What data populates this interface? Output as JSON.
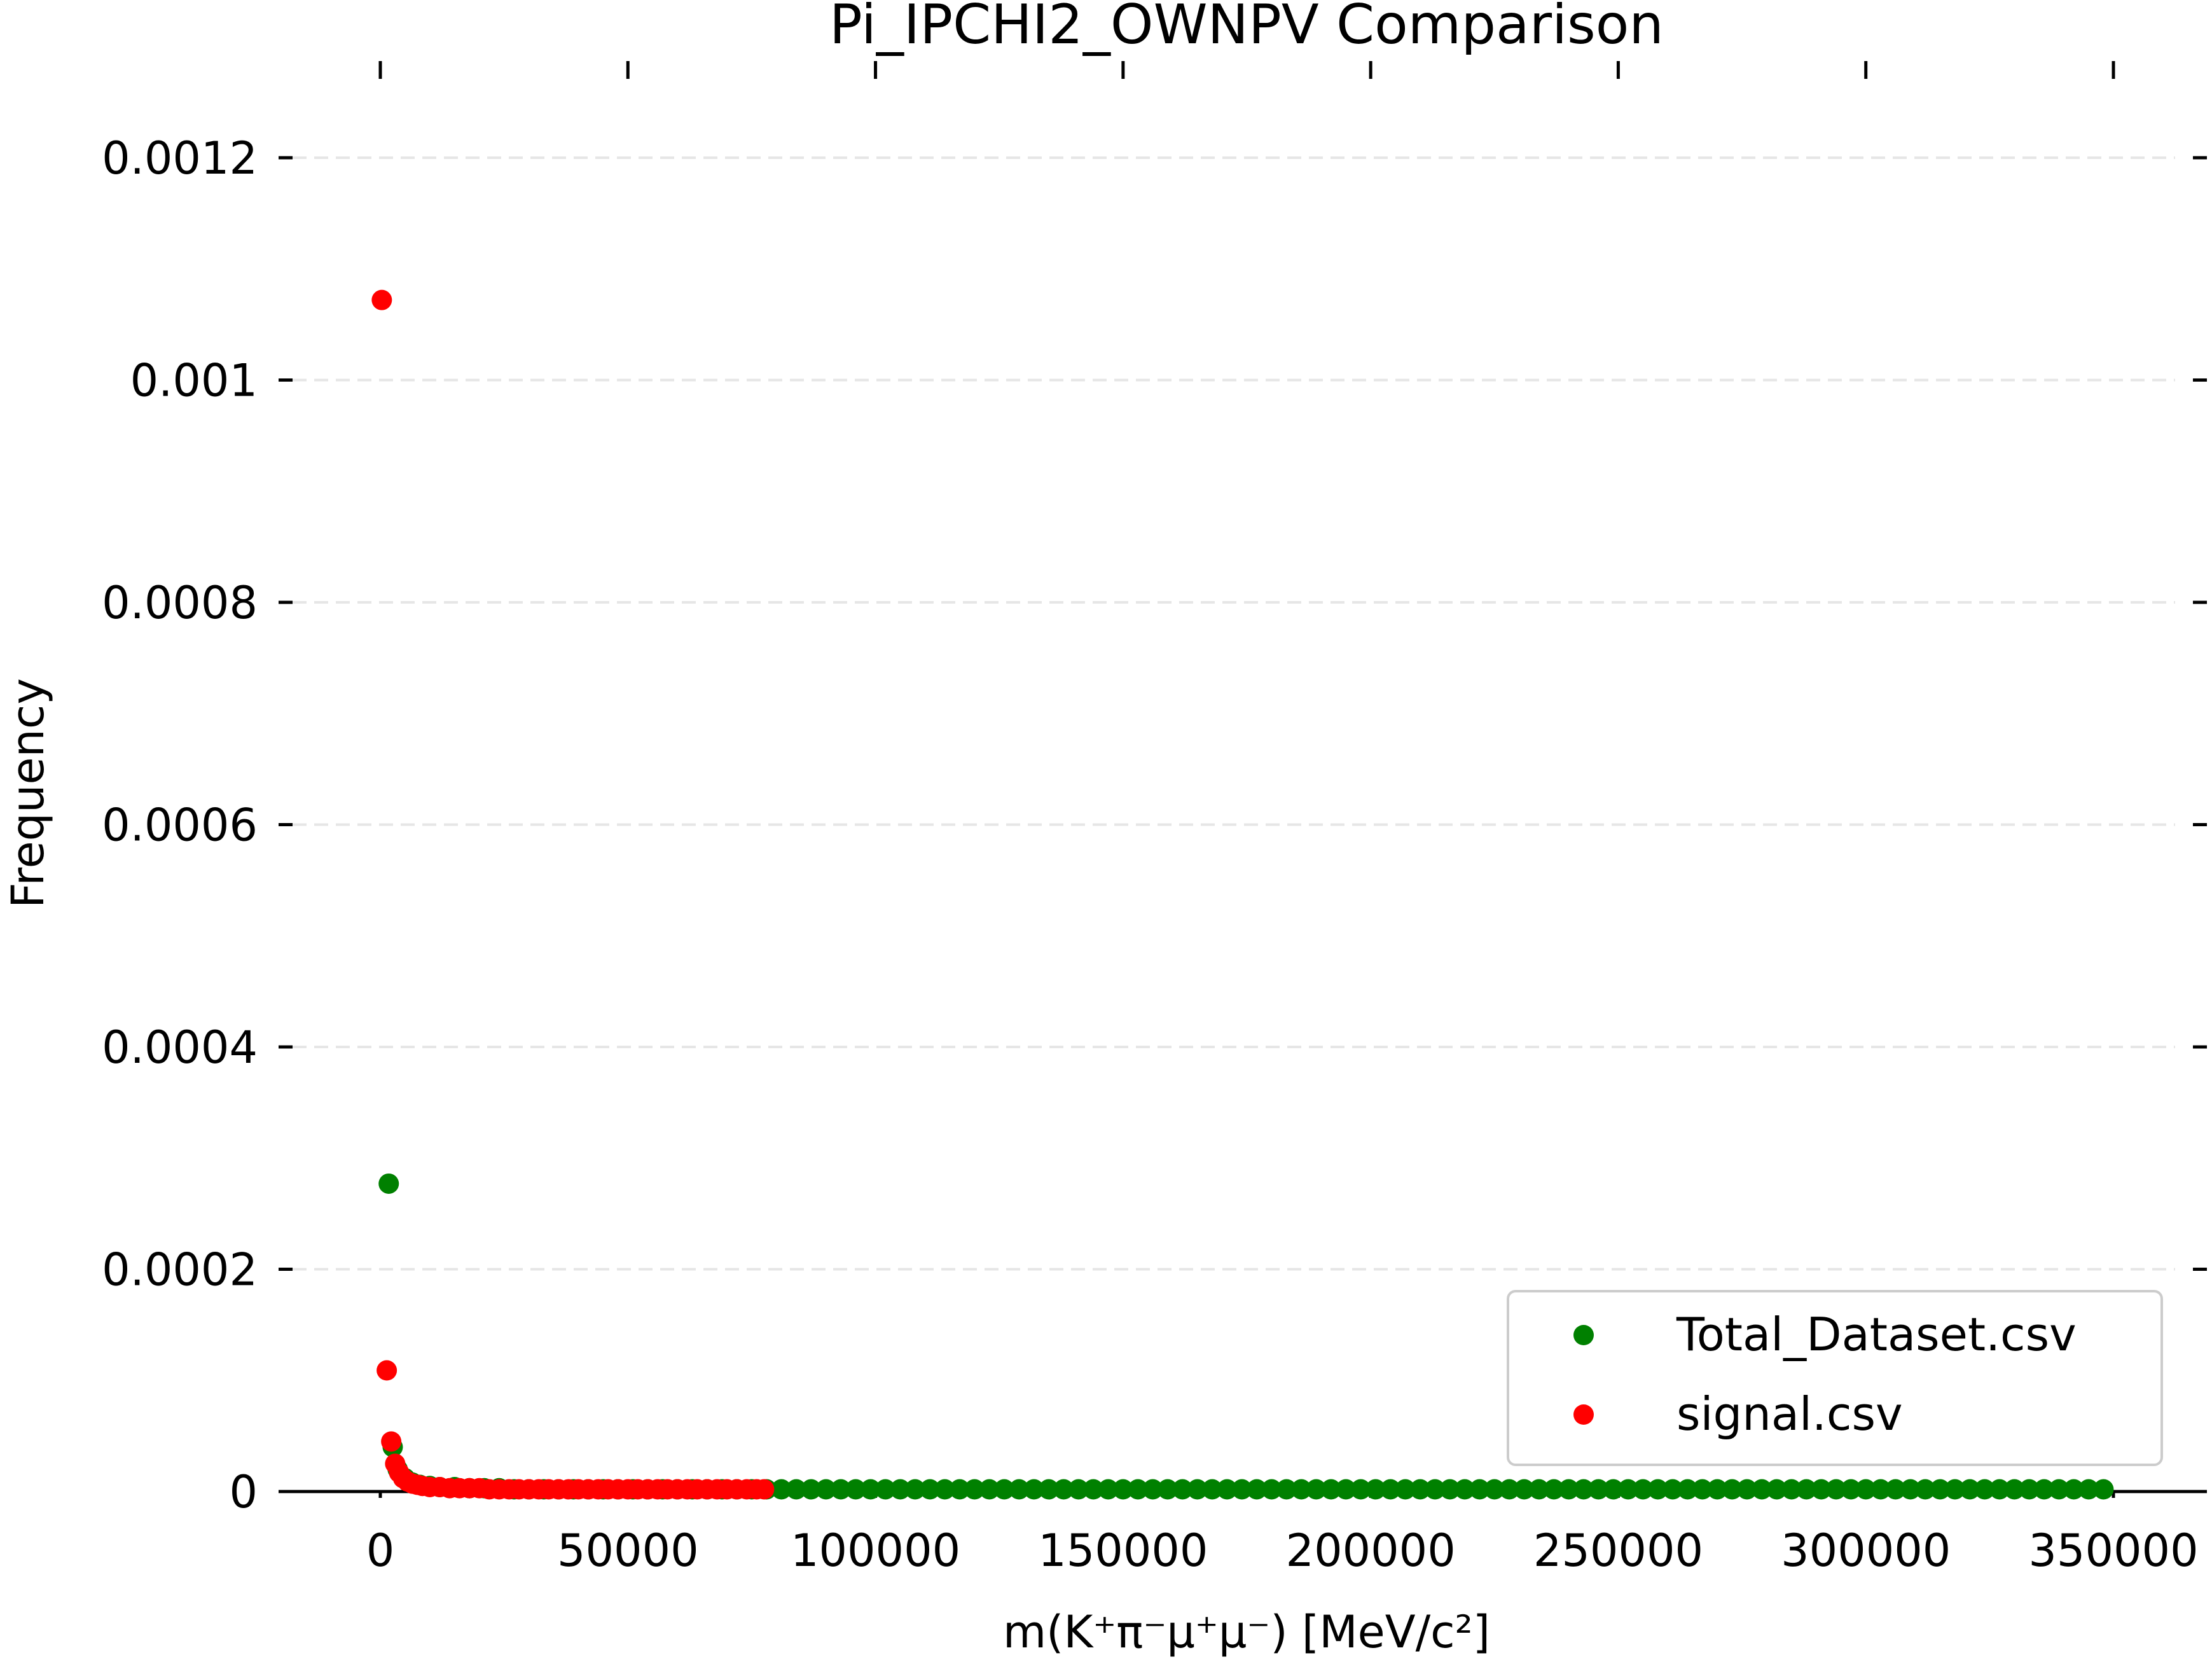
{
  "chart_data": {
    "type": "scatter",
    "title": "Pi_IPCHI2_OWNPV Comparison",
    "xlabel": "m(K⁺π⁻μ⁺μ⁻) [MeV/c²]",
    "ylabel": "Frequency",
    "xlim": [
      -20000,
      370000
    ],
    "ylim": [
      0,
      0.0012
    ],
    "xticks": [
      0,
      50000,
      100000,
      150000,
      200000,
      250000,
      300000,
      350000
    ],
    "xtick_labels": [
      "0",
      "50000",
      "100000",
      "150000",
      "200000",
      "250000",
      "300000",
      "350000"
    ],
    "yticks": [
      0,
      0.0002,
      0.0004,
      0.0006,
      0.0008,
      0.001,
      0.0012
    ],
    "ytick_labels": [
      "0",
      "0.0002",
      "0.0004",
      "0.0006",
      "0.0008",
      "0.001",
      "0.0012"
    ],
    "grid": "horizontal dashed",
    "legend_position": "lower-right",
    "series": [
      {
        "name": "Total_Dataset.csv",
        "color": "#008000",
        "points": [
          [
            1700,
            0.000277
          ],
          [
            2500,
            4e-05
          ],
          [
            3500,
            2e-05
          ],
          [
            5000,
            1.2e-05
          ],
          [
            6500,
            8e-06
          ],
          [
            8000,
            6e-06
          ],
          [
            10000,
            5e-06
          ],
          [
            12000,
            4e-06
          ],
          [
            15000,
            4e-06
          ],
          [
            18000,
            3e-06
          ],
          [
            21000,
            3e-06
          ],
          [
            24000,
            3e-06
          ],
          [
            27000,
            2e-06
          ],
          [
            30000,
            2e-06
          ],
          [
            33000,
            2e-06
          ],
          [
            36000,
            2e-06
          ],
          [
            39000,
            2e-06
          ],
          [
            42000,
            2e-06
          ],
          [
            45000,
            2e-06
          ],
          [
            48000,
            2e-06
          ],
          [
            51000,
            2e-06
          ],
          [
            54000,
            2e-06
          ],
          [
            57000,
            2e-06
          ],
          [
            60000,
            2e-06
          ],
          [
            63000,
            2e-06
          ],
          [
            66000,
            2e-06
          ],
          [
            69000,
            2e-06
          ],
          [
            72000,
            2e-06
          ],
          [
            75000,
            2e-06
          ],
          [
            78000,
            2e-06
          ],
          [
            81000,
            2e-06
          ],
          [
            84000,
            2e-06
          ],
          [
            87000,
            2e-06
          ],
          [
            90000,
            2e-06
          ],
          [
            93000,
            2e-06
          ],
          [
            96000,
            2e-06
          ],
          [
            99000,
            2e-06
          ],
          [
            102000,
            2e-06
          ],
          [
            105000,
            2e-06
          ],
          [
            108000,
            2e-06
          ],
          [
            111000,
            2e-06
          ],
          [
            114000,
            2e-06
          ],
          [
            117000,
            2e-06
          ],
          [
            120000,
            2e-06
          ],
          [
            123000,
            2e-06
          ],
          [
            126000,
            2e-06
          ],
          [
            129000,
            2e-06
          ],
          [
            132000,
            2e-06
          ],
          [
            135000,
            2e-06
          ],
          [
            138000,
            2e-06
          ],
          [
            141000,
            2e-06
          ],
          [
            144000,
            2e-06
          ],
          [
            147000,
            2e-06
          ],
          [
            150000,
            2e-06
          ],
          [
            153000,
            2e-06
          ],
          [
            156000,
            2e-06
          ],
          [
            159000,
            2e-06
          ],
          [
            162000,
            2e-06
          ],
          [
            165000,
            2e-06
          ],
          [
            168000,
            2e-06
          ],
          [
            171000,
            2e-06
          ],
          [
            174000,
            2e-06
          ],
          [
            177000,
            2e-06
          ],
          [
            180000,
            2e-06
          ],
          [
            183000,
            2e-06
          ],
          [
            186000,
            2e-06
          ],
          [
            189000,
            2e-06
          ],
          [
            192000,
            2e-06
          ],
          [
            195000,
            2e-06
          ],
          [
            198000,
            2e-06
          ],
          [
            201000,
            2e-06
          ],
          [
            204000,
            2e-06
          ],
          [
            207000,
            2e-06
          ],
          [
            210000,
            2e-06
          ],
          [
            213000,
            2e-06
          ],
          [
            216000,
            2e-06
          ],
          [
            219000,
            2e-06
          ],
          [
            222000,
            2e-06
          ],
          [
            225000,
            2e-06
          ],
          [
            228000,
            2e-06
          ],
          [
            231000,
            2e-06
          ],
          [
            234000,
            2e-06
          ],
          [
            237000,
            2e-06
          ],
          [
            240000,
            2e-06
          ],
          [
            243000,
            2e-06
          ],
          [
            246000,
            2e-06
          ],
          [
            249000,
            2e-06
          ],
          [
            252000,
            2e-06
          ],
          [
            255000,
            2e-06
          ],
          [
            258000,
            2e-06
          ],
          [
            261000,
            2e-06
          ],
          [
            264000,
            2e-06
          ],
          [
            267000,
            2e-06
          ],
          [
            270000,
            2e-06
          ],
          [
            273000,
            2e-06
          ],
          [
            276000,
            2e-06
          ],
          [
            279000,
            2e-06
          ],
          [
            282000,
            2e-06
          ],
          [
            285000,
            2e-06
          ],
          [
            288000,
            2e-06
          ],
          [
            291000,
            2e-06
          ],
          [
            294000,
            2e-06
          ],
          [
            297000,
            2e-06
          ],
          [
            300000,
            2e-06
          ],
          [
            303000,
            2e-06
          ],
          [
            306000,
            2e-06
          ],
          [
            309000,
            2e-06
          ],
          [
            312000,
            2e-06
          ],
          [
            315000,
            2e-06
          ],
          [
            318000,
            2e-06
          ],
          [
            321000,
            2e-06
          ],
          [
            324000,
            2e-06
          ],
          [
            327000,
            2e-06
          ],
          [
            330000,
            2e-06
          ],
          [
            333000,
            2e-06
          ],
          [
            336000,
            2e-06
          ],
          [
            339000,
            2e-06
          ],
          [
            342000,
            2e-06
          ],
          [
            345000,
            2e-06
          ],
          [
            348000,
            2e-06
          ]
        ]
      },
      {
        "name": "signal.csv",
        "color": "#ff0000",
        "points": [
          [
            300,
            0.001072
          ],
          [
            1300,
            0.000109
          ],
          [
            2200,
            4.5e-05
          ],
          [
            3000,
            2.5e-05
          ],
          [
            3800,
            1.7e-05
          ],
          [
            4600,
            1.2e-05
          ],
          [
            5500,
            9e-06
          ],
          [
            6500,
            7e-06
          ],
          [
            7500,
            6e-06
          ],
          [
            8500,
            5e-06
          ],
          [
            10000,
            4e-06
          ],
          [
            12000,
            4e-06
          ],
          [
            14000,
            3e-06
          ],
          [
            16000,
            3e-06
          ],
          [
            18000,
            3e-06
          ],
          [
            20000,
            3e-06
          ],
          [
            22000,
            2e-06
          ],
          [
            24000,
            2e-06
          ],
          [
            26000,
            2e-06
          ],
          [
            28000,
            2e-06
          ],
          [
            30000,
            2e-06
          ],
          [
            32000,
            2e-06
          ],
          [
            34000,
            2e-06
          ],
          [
            36000,
            2e-06
          ],
          [
            38000,
            2e-06
          ],
          [
            40000,
            2e-06
          ],
          [
            42000,
            2e-06
          ],
          [
            44000,
            2e-06
          ],
          [
            46000,
            2e-06
          ],
          [
            48000,
            2e-06
          ],
          [
            50000,
            2e-06
          ],
          [
            52000,
            2e-06
          ],
          [
            54000,
            2e-06
          ],
          [
            56000,
            2e-06
          ],
          [
            58000,
            2e-06
          ],
          [
            60000,
            2e-06
          ],
          [
            62000,
            2e-06
          ],
          [
            64000,
            2e-06
          ],
          [
            66000,
            2e-06
          ],
          [
            68000,
            2e-06
          ],
          [
            70000,
            2e-06
          ],
          [
            72000,
            2e-06
          ],
          [
            74000,
            2e-06
          ],
          [
            76000,
            2e-06
          ],
          [
            77500,
            2e-06
          ]
        ]
      }
    ]
  }
}
